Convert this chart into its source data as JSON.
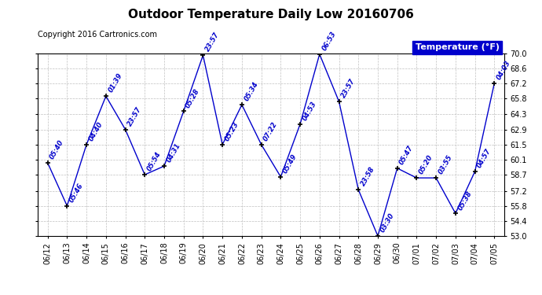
{
  "title": "Outdoor Temperature Daily Low 20160706",
  "copyright": "Copyright 2016 Cartronics.com",
  "legend_label": "Temperature (°F)",
  "dates": [
    "06/12",
    "06/13",
    "06/14",
    "06/15",
    "06/16",
    "06/17",
    "06/18",
    "06/19",
    "06/20",
    "06/21",
    "06/22",
    "06/23",
    "06/24",
    "06/25",
    "06/26",
    "06/27",
    "06/28",
    "06/29",
    "06/30",
    "07/01",
    "07/02",
    "07/03",
    "07/04",
    "07/05"
  ],
  "temperatures": [
    59.8,
    55.8,
    61.5,
    66.0,
    62.9,
    58.7,
    59.5,
    64.6,
    69.8,
    61.5,
    65.2,
    61.5,
    58.5,
    63.4,
    69.9,
    65.5,
    57.3,
    53.0,
    59.3,
    58.4,
    58.4,
    55.1,
    59.0,
    67.2
  ],
  "time_labels": [
    "05:40",
    "05:46",
    "04:40",
    "01:39",
    "23:57",
    "05:54",
    "04:31",
    "05:28",
    "23:57",
    "05:23",
    "05:34",
    "07:22",
    "05:49",
    "04:53",
    "06:53",
    "23:57",
    "23:58",
    "03:30",
    "05:47",
    "05:20",
    "03:55",
    "05:38",
    "04:57",
    "04:03"
  ],
  "ylim": [
    53.0,
    70.0
  ],
  "yticks": [
    53.0,
    54.4,
    55.8,
    57.2,
    58.7,
    60.1,
    61.5,
    62.9,
    64.3,
    65.8,
    67.2,
    68.6,
    70.0
  ],
  "line_color": "#0000cc",
  "marker_color": "#000000",
  "bg_color": "#ffffff",
  "grid_color": "#b0b0b0",
  "title_color": "#000000",
  "label_color": "#0000cc",
  "legend_bg": "#0000cc",
  "legend_fg": "#ffffff",
  "copyright_color": "#000000",
  "title_fontsize": 11,
  "copyright_fontsize": 7,
  "tick_fontsize": 7,
  "annotation_fontsize": 6,
  "legend_fontsize": 8
}
